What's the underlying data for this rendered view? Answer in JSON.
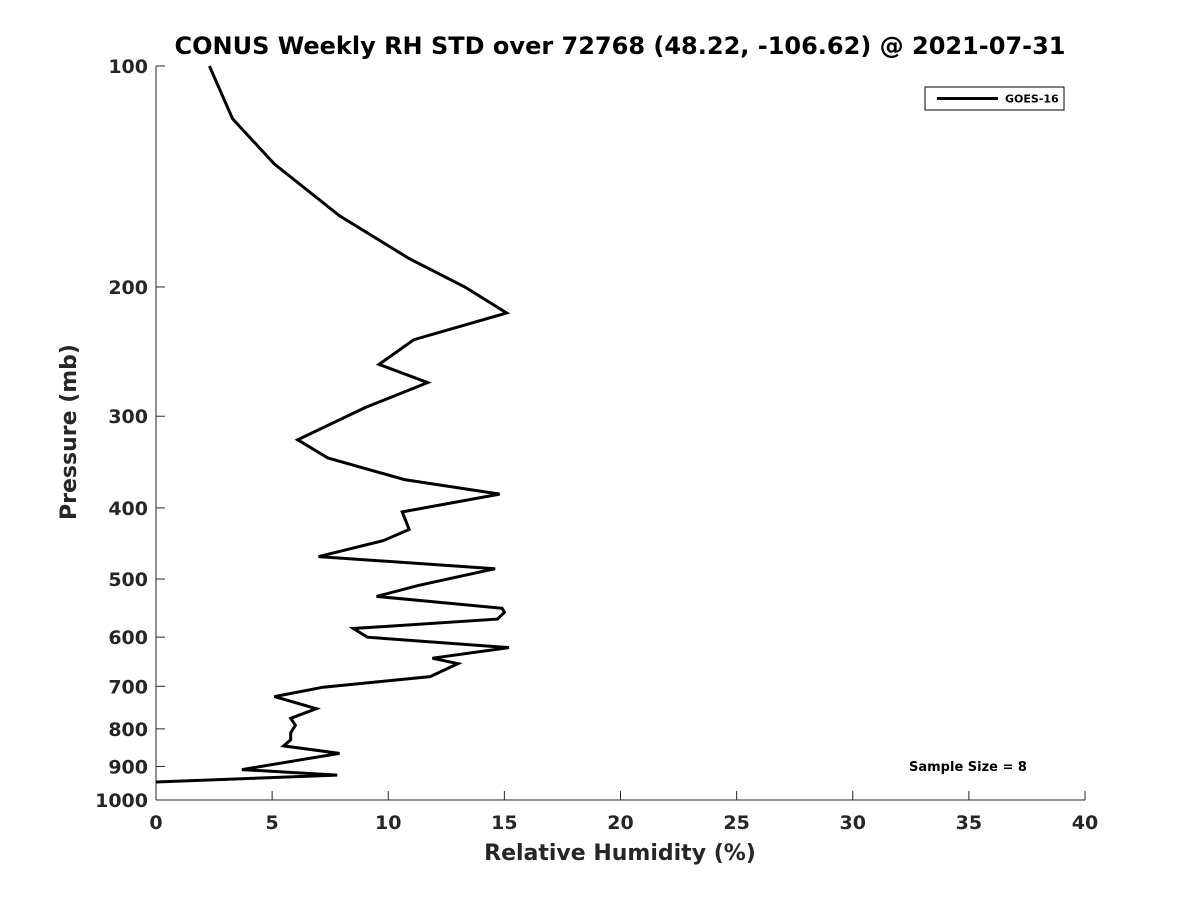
{
  "chart_data": {
    "type": "line",
    "title": "CONUS Weekly RH STD over 72768 (48.22, -106.62) @ 2021-07-31",
    "xlabel": "Relative Humidity (%)",
    "ylabel": "Pressure (mb)",
    "xlim": [
      0,
      40
    ],
    "ylim": [
      100,
      1000
    ],
    "y_scale": "log",
    "y_reversed": true,
    "grid": false,
    "legend_position": "top-right",
    "x_ticks": [
      0,
      5,
      10,
      15,
      20,
      25,
      30,
      35,
      40
    ],
    "y_ticks": [
      100,
      200,
      300,
      400,
      500,
      600,
      700,
      800,
      900,
      1000
    ],
    "series": [
      {
        "name": "GOES-16",
        "color": "#000000",
        "points": [
          [
            2.3,
            100
          ],
          [
            3.3,
            118
          ],
          [
            5.1,
            136
          ],
          [
            7.9,
            160
          ],
          [
            10.9,
            183
          ],
          [
            13.3,
            200
          ],
          [
            15.1,
            217
          ],
          [
            11.1,
            236
          ],
          [
            9.6,
            255
          ],
          [
            11.7,
            270
          ],
          [
            9.0,
            292
          ],
          [
            6.1,
            323
          ],
          [
            7.4,
            342
          ],
          [
            10.7,
            366
          ],
          [
            14.8,
            383
          ],
          [
            10.6,
            405
          ],
          [
            10.9,
            428
          ],
          [
            9.8,
            443
          ],
          [
            7.0,
            466
          ],
          [
            14.6,
            484
          ],
          [
            11.3,
            510
          ],
          [
            9.5,
            528
          ],
          [
            14.9,
            548
          ],
          [
            15.0,
            555
          ],
          [
            14.7,
            567
          ],
          [
            8.5,
            584
          ],
          [
            9.1,
            600
          ],
          [
            15.2,
            620
          ],
          [
            11.9,
            641
          ],
          [
            13.0,
            652
          ],
          [
            11.8,
            679
          ],
          [
            7.2,
            702
          ],
          [
            5.1,
            723
          ],
          [
            6.9,
            751
          ],
          [
            5.8,
            774
          ],
          [
            6.0,
            791
          ],
          [
            5.8,
            810
          ],
          [
            5.8,
            828
          ],
          [
            5.5,
            844
          ],
          [
            7.9,
            864
          ],
          [
            6.1,
            883
          ],
          [
            3.7,
            909
          ],
          [
            7.8,
            925
          ],
          [
            0.0,
            945
          ]
        ]
      }
    ],
    "legend_label": "GOES-16",
    "annotation": "Sample Size = 8"
  }
}
